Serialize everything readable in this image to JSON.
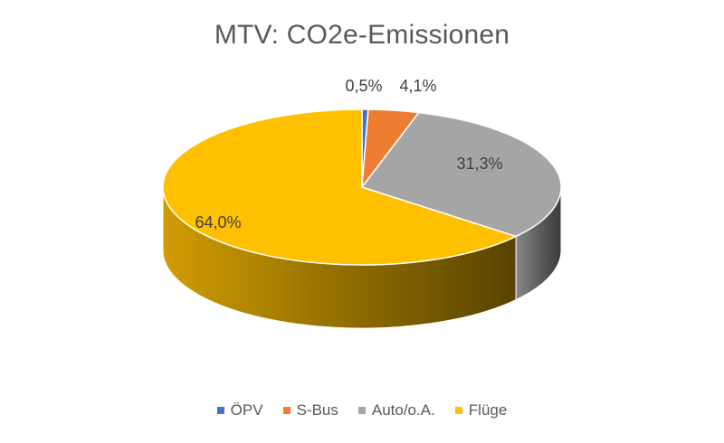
{
  "chart_data": {
    "type": "pie",
    "title": "MTV: CO2e-Emissionen",
    "three_d": true,
    "legend_position": "bottom",
    "series": [
      {
        "categories": [
          "ÖPV",
          "S-Bus",
          "Auto/o.A.",
          "Flüge"
        ],
        "values": [
          0.5,
          4.1,
          31.3,
          64.0
        ],
        "labels": [
          "0,5%",
          "4,1%",
          "31,3%",
          "64,0%"
        ],
        "colors": [
          "#4472C4",
          "#ED7D31",
          "#A5A5A5",
          "#FFC000"
        ]
      }
    ]
  }
}
